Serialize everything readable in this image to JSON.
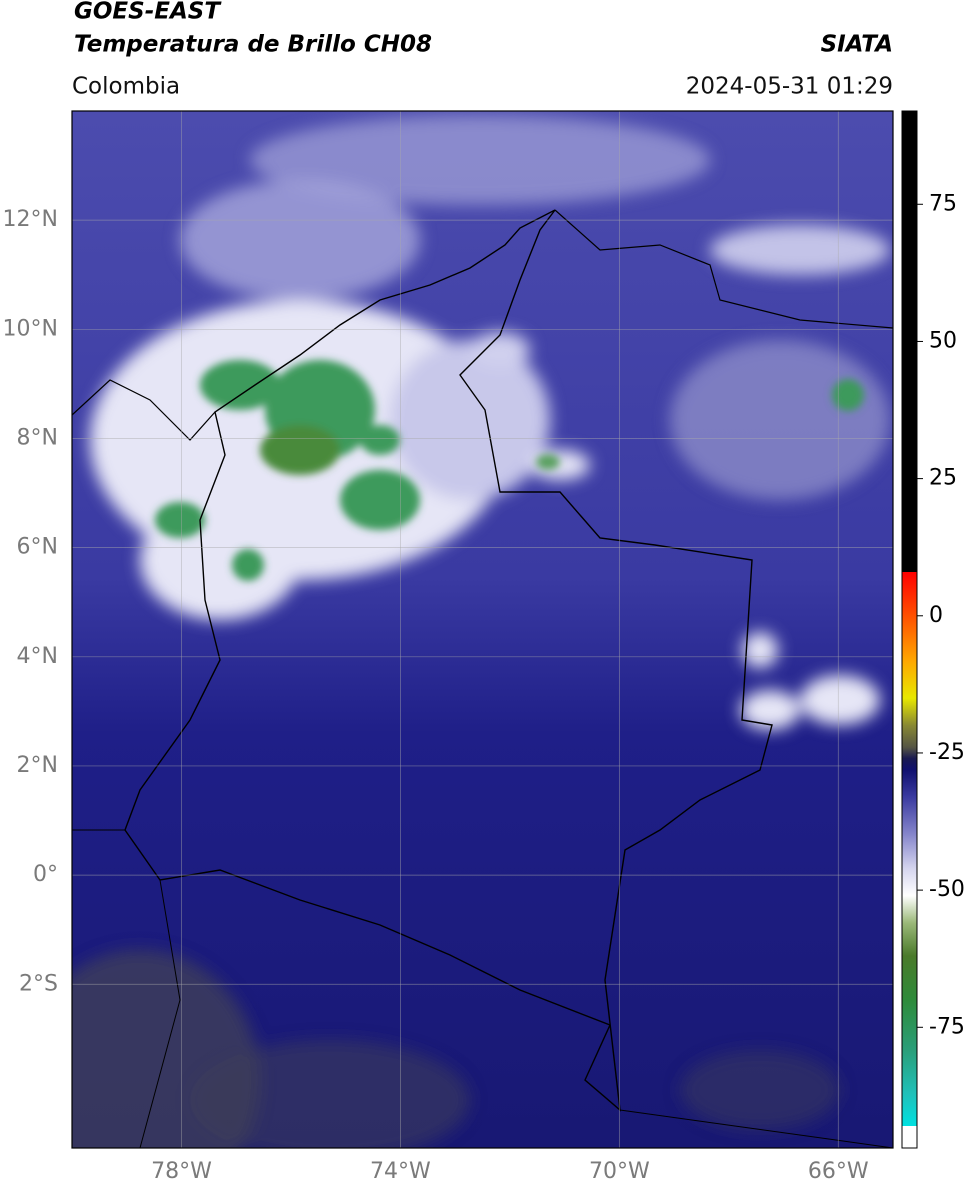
{
  "chart_data": {
    "type": "map",
    "title": "GOES-EAST",
    "subtitle": "Temperatura de Brillo CH08",
    "source": "SIATA",
    "region": "Colombia",
    "timestamp": "2024-05-31 01:29",
    "xlim": [
      -80,
      -65
    ],
    "ylim": [
      -5,
      14
    ],
    "xticks": [
      {
        "value": -78,
        "label": "78°W"
      },
      {
        "value": -74,
        "label": "74°W"
      },
      {
        "value": -70,
        "label": "70°W"
      },
      {
        "value": -66,
        "label": "66°W"
      }
    ],
    "yticks": [
      {
        "value": 12,
        "label": "12°N"
      },
      {
        "value": 10,
        "label": "10°N"
      },
      {
        "value": 8,
        "label": "8°N"
      },
      {
        "value": 6,
        "label": "6°N"
      },
      {
        "value": 4,
        "label": "4°N"
      },
      {
        "value": 2,
        "label": "2°N"
      },
      {
        "value": 0,
        "label": "0°"
      },
      {
        "value": -2,
        "label": "2°S"
      }
    ],
    "grid": true,
    "colorbar": {
      "lim": [
        -97,
        92
      ],
      "ticks": [
        75,
        50,
        25,
        0,
        -25,
        -50,
        -75
      ],
      "colormap": [
        {
          "value": -97,
          "color": "#ffffff"
        },
        {
          "value": -93,
          "color": "#ffffff"
        },
        {
          "value": -93,
          "color": "#00e0e0"
        },
        {
          "value": -87,
          "color": "#20c0b8"
        },
        {
          "value": -79,
          "color": "#2a9e78"
        },
        {
          "value": -70,
          "color": "#2e8b3a"
        },
        {
          "value": -62,
          "color": "#4a7a2a"
        },
        {
          "value": -56,
          "color": "#9ab878"
        },
        {
          "value": -51,
          "color": "#ffffff"
        },
        {
          "value": -46,
          "color": "#d4d4ee"
        },
        {
          "value": -40,
          "color": "#8888cc"
        },
        {
          "value": -33,
          "color": "#3a3aa0"
        },
        {
          "value": -28,
          "color": "#10106e"
        },
        {
          "value": -26,
          "color": "#1a1a50"
        },
        {
          "value": -24,
          "color": "#555544"
        },
        {
          "value": -20,
          "color": "#888833"
        },
        {
          "value": -15,
          "color": "#e8e800"
        },
        {
          "value": -8,
          "color": "#ffa500"
        },
        {
          "value": 0,
          "color": "#ff5000"
        },
        {
          "value": 8,
          "color": "#ff0000"
        },
        {
          "value": 8,
          "color": "#000000"
        },
        {
          "value": 92,
          "color": "#000000"
        }
      ]
    }
  }
}
